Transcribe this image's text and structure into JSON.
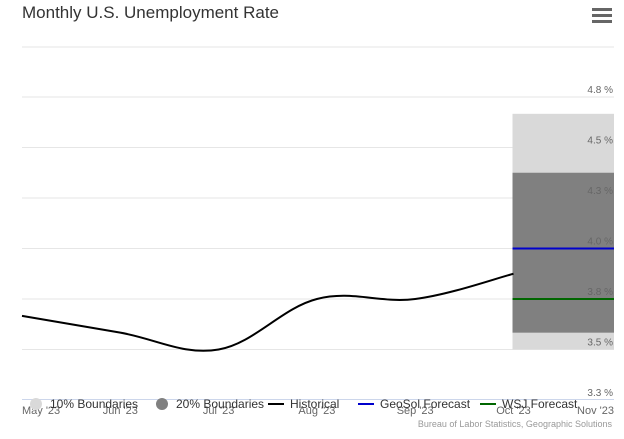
{
  "chart_data": {
    "type": "line",
    "title": "Monthly U.S. Unemployment Rate",
    "xlabel": "",
    "ylabel": "",
    "x_categories": [
      "May '23",
      "Jun '23",
      "Jul '23",
      "Aug '23",
      "Sep '23",
      "Oct '23",
      "Nov '23"
    ],
    "y_ticks": [
      3.3,
      3.5,
      3.8,
      4.0,
      4.3,
      4.5,
      4.8
    ],
    "y_tick_labels": [
      "3.3 %",
      "3.5 %",
      "3.8 %",
      "4.0 %",
      "4.3 %",
      "4.5 %",
      "4.8 %"
    ],
    "ylim": [
      3.3,
      4.8
    ],
    "historical": {
      "name": "Historical",
      "color": "#000000",
      "x": [
        "May '23",
        "Jun '23",
        "Jul '23",
        "Aug '23",
        "Sep '23",
        "Oct '23"
      ],
      "values": [
        3.7,
        3.6,
        3.5,
        3.8,
        3.8,
        3.9
      ]
    },
    "forecasts": [
      {
        "name": "GeoSol Forecast",
        "color": "#0000cc",
        "x": "Oct '23",
        "value": 4.0
      },
      {
        "name": "WSJ Forecast",
        "color": "#006600",
        "x": "Oct '23",
        "value": 3.8
      }
    ],
    "boundaries": [
      {
        "name": "10% Boundaries",
        "color": "#d9d9d9",
        "x": "Oct '23",
        "low": 3.5,
        "high": 4.7
      },
      {
        "name": "20% Boundaries",
        "color": "#808080",
        "x": "Oct '23",
        "low": 3.6,
        "high": 4.4
      }
    ],
    "grid": true,
    "legend_position": "bottom"
  },
  "menu": {
    "icon": "hamburger-menu-icon"
  },
  "credits": "Bureau of Labor Statistics, Geographic Solutions"
}
